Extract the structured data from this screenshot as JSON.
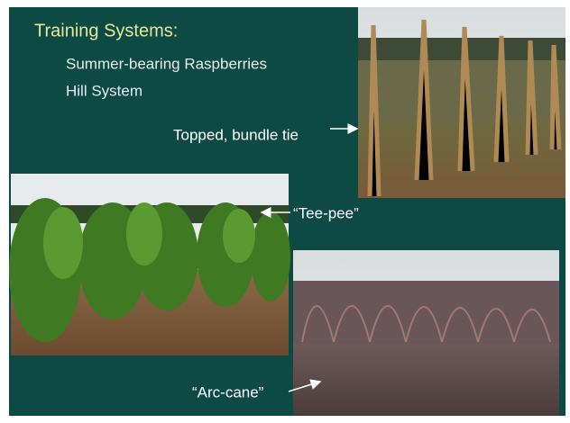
{
  "title": "Training Systems:",
  "lines": [
    "Summer-bearing Raspberries",
    "Hill System"
  ],
  "captions": [
    "Topped, bundle tie",
    "“Tee-pee”",
    "“Arc-cane”"
  ]
}
